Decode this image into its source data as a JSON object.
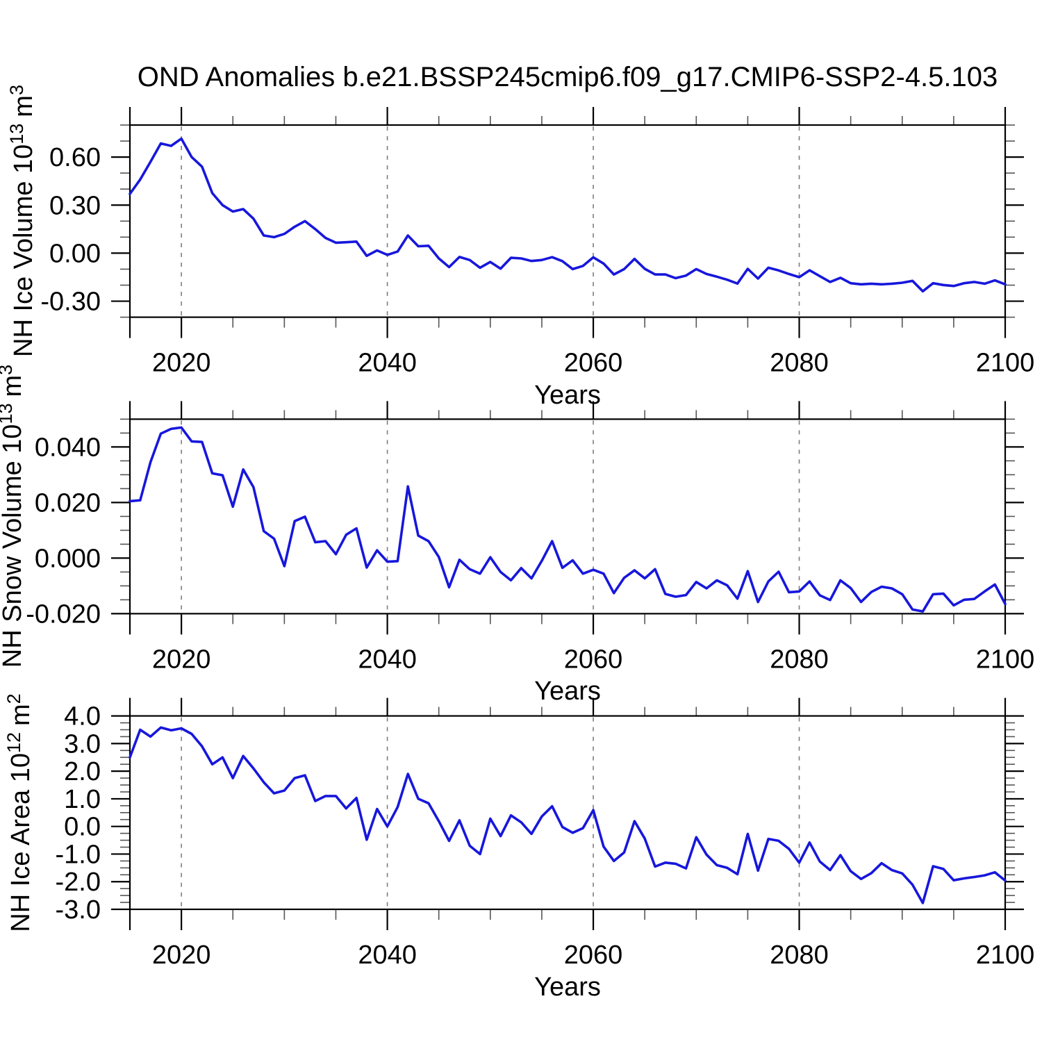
{
  "title": "OND Anomalies b.e21.BSSP245cmip6.f09_g17.CMIP6-SSP2-4.5.103",
  "style": {
    "line_color": "#1717dc",
    "grid_color": "#7d7d7d",
    "axis_color": "#000000",
    "minor_tick_color": "#555555",
    "text_color": "#000000",
    "background": "#ffffff"
  },
  "years": [
    2015,
    2016,
    2017,
    2018,
    2019,
    2020,
    2021,
    2022,
    2023,
    2024,
    2025,
    2026,
    2027,
    2028,
    2029,
    2030,
    2031,
    2032,
    2033,
    2034,
    2035,
    2036,
    2037,
    2038,
    2039,
    2040,
    2041,
    2042,
    2043,
    2044,
    2045,
    2046,
    2047,
    2048,
    2049,
    2050,
    2051,
    2052,
    2053,
    2054,
    2055,
    2056,
    2057,
    2058,
    2059,
    2060,
    2061,
    2062,
    2063,
    2064,
    2065,
    2066,
    2067,
    2068,
    2069,
    2070,
    2071,
    2072,
    2073,
    2074,
    2075,
    2076,
    2077,
    2078,
    2079,
    2080,
    2081,
    2082,
    2083,
    2084,
    2085,
    2086,
    2087,
    2088,
    2089,
    2090,
    2091,
    2092,
    2093,
    2094,
    2095,
    2096,
    2097,
    2098,
    2099,
    2100
  ],
  "chart_data": [
    {
      "type": "line",
      "ylabel": "NH Ice Volume 10^13 m^3",
      "ylabel_prefix": "NH Ice Volume 10",
      "ylabel_exponent": "13",
      "ylabel_unit": "m",
      "ylabel_unit_exponent": "3",
      "xlabel": "Years",
      "xlim": [
        2015,
        2100
      ],
      "ylim": [
        -0.4,
        0.8
      ],
      "xtick_values": [
        2020,
        2040,
        2060,
        2080,
        2100
      ],
      "xtick_labels": [
        "2020",
        "2040",
        "2060",
        "2080",
        "2100"
      ],
      "xtick_minor_step": 5,
      "grid_x": [
        2020,
        2040,
        2060,
        2080
      ],
      "ytick_values": [
        0.6,
        0.3,
        0.0,
        -0.3
      ],
      "ytick_labels": [
        "0.60",
        "0.30",
        "0.00",
        "-0.30"
      ],
      "ytick_minor_step": 0.1,
      "values": [
        0.37,
        0.46,
        0.57,
        0.685,
        0.67,
        0.715,
        0.6,
        0.54,
        0.375,
        0.3,
        0.26,
        0.275,
        0.215,
        0.11,
        0.1,
        0.12,
        0.165,
        0.2,
        0.15,
        0.095,
        0.065,
        0.068,
        0.072,
        -0.017,
        0.017,
        -0.011,
        0.01,
        0.11,
        0.043,
        0.046,
        -0.033,
        -0.087,
        -0.024,
        -0.043,
        -0.091,
        -0.055,
        -0.097,
        -0.029,
        -0.033,
        -0.049,
        -0.043,
        -0.025,
        -0.05,
        -0.1,
        -0.08,
        -0.026,
        -0.065,
        -0.133,
        -0.1,
        -0.036,
        -0.098,
        -0.133,
        -0.133,
        -0.156,
        -0.14,
        -0.1,
        -0.13,
        -0.147,
        -0.166,
        -0.19,
        -0.098,
        -0.159,
        -0.091,
        -0.108,
        -0.13,
        -0.15,
        -0.107,
        -0.144,
        -0.18,
        -0.154,
        -0.188,
        -0.195,
        -0.191,
        -0.195,
        -0.191,
        -0.185,
        -0.173,
        -0.238,
        -0.188,
        -0.199,
        -0.205,
        -0.188,
        -0.18,
        -0.191,
        -0.17,
        -0.195
      ]
    },
    {
      "type": "line",
      "ylabel": "NH Snow Volume 10^13 m^3",
      "ylabel_prefix": "NH Snow Volume 10",
      "ylabel_exponent": "13",
      "ylabel_unit": "m",
      "ylabel_unit_exponent": "3",
      "xlabel": "Years",
      "xlim": [
        2015,
        2100
      ],
      "ylim": [
        -0.02,
        0.05
      ],
      "xtick_values": [
        2020,
        2040,
        2060,
        2080,
        2100
      ],
      "xtick_labels": [
        "2020",
        "2040",
        "2060",
        "2080",
        "2100"
      ],
      "xtick_minor_step": 5,
      "grid_x": [
        2020,
        2040,
        2060,
        2080
      ],
      "ytick_values": [
        0.04,
        0.02,
        0.0,
        -0.02
      ],
      "ytick_labels": [
        "0.040",
        "0.020",
        "0.000",
        "-0.020"
      ],
      "ytick_minor_step": 0.005,
      "values": [
        0.0205,
        0.0208,
        0.0345,
        0.0448,
        0.0465,
        0.047,
        0.042,
        0.0418,
        0.0305,
        0.0298,
        0.0185,
        0.0319,
        0.0255,
        0.0097,
        0.007,
        -0.0029,
        0.0133,
        0.0149,
        0.0057,
        0.0061,
        0.0014,
        0.0084,
        0.0107,
        -0.0034,
        0.0028,
        -0.0013,
        -0.0011,
        0.0258,
        0.0081,
        0.0061,
        0.0004,
        -0.0105,
        -0.0006,
        -0.004,
        -0.0056,
        0.0003,
        -0.005,
        -0.008,
        -0.0036,
        -0.0073,
        -0.001,
        0.0061,
        -0.0035,
        -0.0008,
        -0.0056,
        -0.0042,
        -0.0056,
        -0.0126,
        -0.0071,
        -0.0044,
        -0.0073,
        -0.004,
        -0.0129,
        -0.0139,
        -0.0133,
        -0.0086,
        -0.0109,
        -0.008,
        -0.0098,
        -0.0146,
        -0.0047,
        -0.0158,
        -0.0084,
        -0.0049,
        -0.0123,
        -0.012,
        -0.0084,
        -0.0134,
        -0.0151,
        -0.008,
        -0.0108,
        -0.0158,
        -0.0122,
        -0.0103,
        -0.0109,
        -0.013,
        -0.0185,
        -0.0192,
        -0.013,
        -0.0128,
        -0.017,
        -0.015,
        -0.0147,
        -0.012,
        -0.0095,
        -0.0165
      ]
    },
    {
      "type": "line",
      "ylabel": "NH Ice Area 10^12 m^2",
      "ylabel_prefix": "NH Ice Area 10",
      "ylabel_exponent": "12",
      "ylabel_unit": "m",
      "ylabel_unit_exponent": "2",
      "xlabel": "Years",
      "xlim": [
        2015,
        2100
      ],
      "ylim": [
        -3.0,
        4.0
      ],
      "xtick_values": [
        2020,
        2040,
        2060,
        2080,
        2100
      ],
      "xtick_labels": [
        "2020",
        "2040",
        "2060",
        "2080",
        "2100"
      ],
      "xtick_minor_step": 5,
      "grid_x": [
        2020,
        2040,
        2060,
        2080
      ],
      "ytick_values": [
        4.0,
        3.0,
        2.0,
        1.0,
        0.0,
        -1.0,
        -2.0,
        -3.0
      ],
      "ytick_labels": [
        "4.0",
        "3.0",
        "2.0",
        "1.0",
        "0.0",
        "-1.0",
        "-2.0",
        "-3.0"
      ],
      "ytick_minor_step": 0.25,
      "values": [
        2.5,
        3.5,
        3.25,
        3.58,
        3.48,
        3.55,
        3.35,
        2.9,
        2.25,
        2.5,
        1.75,
        2.55,
        2.1,
        1.6,
        1.2,
        1.3,
        1.75,
        1.85,
        0.92,
        1.1,
        1.1,
        0.65,
        1.03,
        -0.48,
        0.63,
        0.0,
        0.7,
        1.9,
        1.0,
        0.84,
        0.19,
        -0.52,
        0.22,
        -0.7,
        -1.0,
        0.28,
        -0.35,
        0.4,
        0.15,
        -0.27,
        0.36,
        0.73,
        -0.02,
        -0.23,
        -0.06,
        0.59,
        -0.73,
        -1.25,
        -0.94,
        0.19,
        -0.44,
        -1.45,
        -1.31,
        -1.35,
        -1.52,
        -0.39,
        -1.02,
        -1.4,
        -1.5,
        -1.73,
        -0.27,
        -1.6,
        -0.45,
        -0.52,
        -0.81,
        -1.31,
        -0.58,
        -1.27,
        -1.58,
        -1.04,
        -1.62,
        -1.9,
        -1.69,
        -1.33,
        -1.58,
        -1.7,
        -2.11,
        -2.77,
        -1.44,
        -1.54,
        -1.95,
        -1.88,
        -1.83,
        -1.77,
        -1.66,
        -1.96
      ]
    }
  ]
}
